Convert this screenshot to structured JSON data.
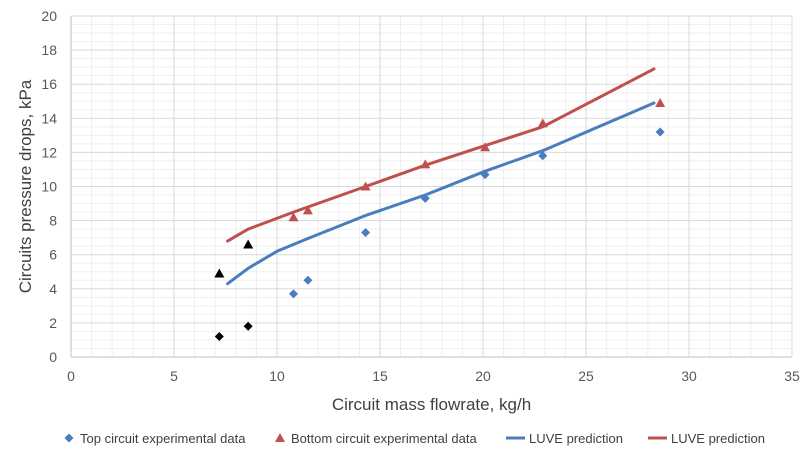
{
  "chart_data": {
    "type": "scatter",
    "xlabel": "Circuit mass flowrate, kg/h",
    "ylabel": "Circuits pressure drops, kPa",
    "xlim": [
      0,
      35
    ],
    "ylim": [
      0,
      20
    ],
    "x_ticks": [
      0,
      5,
      10,
      15,
      20,
      25,
      30,
      35
    ],
    "y_ticks": [
      0,
      2,
      4,
      6,
      8,
      10,
      12,
      14,
      16,
      18,
      20
    ],
    "grid": true,
    "legend_position": "bottom",
    "series": [
      {
        "name": "Top circuit experimental data",
        "kind": "markers",
        "marker": "diamond",
        "color": "#4a7dbd",
        "points": [
          [
            10.8,
            3.7
          ],
          [
            11.5,
            4.5
          ],
          [
            14.3,
            7.3
          ],
          [
            17.2,
            9.3
          ],
          [
            20.1,
            10.7
          ],
          [
            22.9,
            11.8
          ],
          [
            28.6,
            13.2
          ]
        ]
      },
      {
        "name": "Bottom circuit experimental data",
        "kind": "markers",
        "marker": "triangle",
        "color": "#c0504d",
        "points": [
          [
            10.8,
            8.2
          ],
          [
            11.5,
            8.6
          ],
          [
            14.3,
            10.0
          ],
          [
            17.2,
            11.3
          ],
          [
            20.1,
            12.3
          ],
          [
            22.9,
            13.7
          ],
          [
            28.6,
            14.9
          ]
        ]
      },
      {
        "name": "LUVE prediction",
        "kind": "line",
        "color": "#4a7dbd",
        "points": [
          [
            7.6,
            4.3
          ],
          [
            8.6,
            5.2
          ],
          [
            10.0,
            6.2
          ],
          [
            11.5,
            6.95
          ],
          [
            14.3,
            8.3
          ],
          [
            17.2,
            9.5
          ],
          [
            20.1,
            10.9
          ],
          [
            22.9,
            12.1
          ],
          [
            28.3,
            14.9
          ]
        ]
      },
      {
        "name": "LUVE prediction",
        "kind": "line",
        "color": "#c0504d",
        "points": [
          [
            7.6,
            6.8
          ],
          [
            8.6,
            7.5
          ],
          [
            10.8,
            8.5
          ],
          [
            14.3,
            10.0
          ],
          [
            17.2,
            11.25
          ],
          [
            20.1,
            12.4
          ],
          [
            22.9,
            13.5
          ],
          [
            28.3,
            16.9
          ]
        ]
      },
      {
        "name": "",
        "kind": "markers",
        "marker": "triangle",
        "color": "#000000",
        "in_legend": false,
        "points": [
          [
            7.2,
            4.9
          ],
          [
            8.6,
            6.6
          ]
        ]
      },
      {
        "name": "",
        "kind": "markers",
        "marker": "diamond",
        "color": "#000000",
        "in_legend": false,
        "points": [
          [
            7.2,
            1.2
          ],
          [
            8.6,
            1.8
          ]
        ]
      }
    ],
    "legend": [
      {
        "label": "Top circuit experimental data",
        "symbol": "diamond",
        "color": "#4a7dbd"
      },
      {
        "label": "Bottom circuit experimental data",
        "symbol": "triangle",
        "color": "#c0504d"
      },
      {
        "label": "LUVE prediction",
        "symbol": "line",
        "color": "#4a7dbd"
      },
      {
        "label": "LUVE prediction",
        "symbol": "line",
        "color": "#c0504d"
      }
    ],
    "colors": {
      "grid": "#d9d9d9",
      "axis": "#bfbfbf"
    }
  }
}
